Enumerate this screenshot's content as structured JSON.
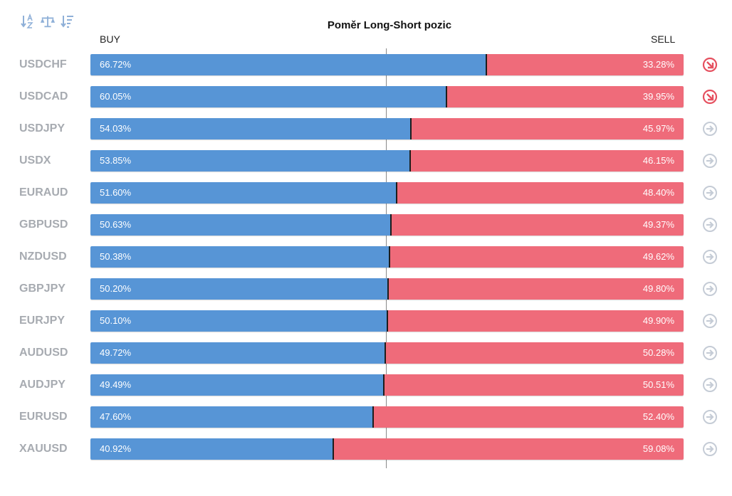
{
  "title": "Poměr Long-Short pozic",
  "buy_label": "BUY",
  "sell_label": "SELL",
  "colors": {
    "buy": "#5795d6",
    "sell": "#ef6b7a",
    "down_arrow": "#e5505f",
    "neutral_arrow": "#c5ccd6",
    "icon": "#8fb0d8"
  },
  "toolbar": [
    {
      "name": "sort-alphabetical-icon",
      "tooltip": ""
    },
    {
      "name": "balance-scale-icon",
      "tooltip": ""
    },
    {
      "name": "sort-descending-icon",
      "tooltip": ""
    }
  ],
  "chart_data": {
    "type": "bar",
    "stacked": true,
    "orientation": "horizontal",
    "categories": [
      "USDCHF",
      "USDCAD",
      "USDJPY",
      "USDX",
      "EURAUD",
      "GBPUSD",
      "NZDUSD",
      "GBPJPY",
      "EURJPY",
      "AUDUSD",
      "AUDJPY",
      "EURUSD",
      "XAUUSD"
    ],
    "series": [
      {
        "name": "BUY",
        "values": [
          66.72,
          60.05,
          54.03,
          53.85,
          51.6,
          50.63,
          50.38,
          50.2,
          50.1,
          49.72,
          49.49,
          47.6,
          40.92
        ]
      },
      {
        "name": "SELL",
        "values": [
          33.28,
          39.95,
          45.97,
          46.15,
          48.4,
          49.37,
          49.62,
          49.8,
          49.9,
          50.28,
          50.51,
          52.4,
          59.08
        ]
      }
    ],
    "buy_labels": [
      "66.72%",
      "60.05%",
      "54.03%",
      "53.85%",
      "51.60%",
      "50.63%",
      "50.38%",
      "50.20%",
      "50.10%",
      "49.72%",
      "49.49%",
      "47.60%",
      "40.92%"
    ],
    "sell_labels": [
      "33.28%",
      "39.95%",
      "45.97%",
      "46.15%",
      "48.40%",
      "49.37%",
      "49.62%",
      "49.80%",
      "49.90%",
      "50.28%",
      "50.51%",
      "52.40%",
      "59.08%"
    ],
    "trend_icons": [
      "down-right",
      "down-right",
      "right",
      "right",
      "right",
      "right",
      "right",
      "right",
      "right",
      "right",
      "right",
      "right",
      "right"
    ],
    "xlim": [
      0,
      100
    ],
    "center_line": 50,
    "legend": "none",
    "grid": false
  }
}
